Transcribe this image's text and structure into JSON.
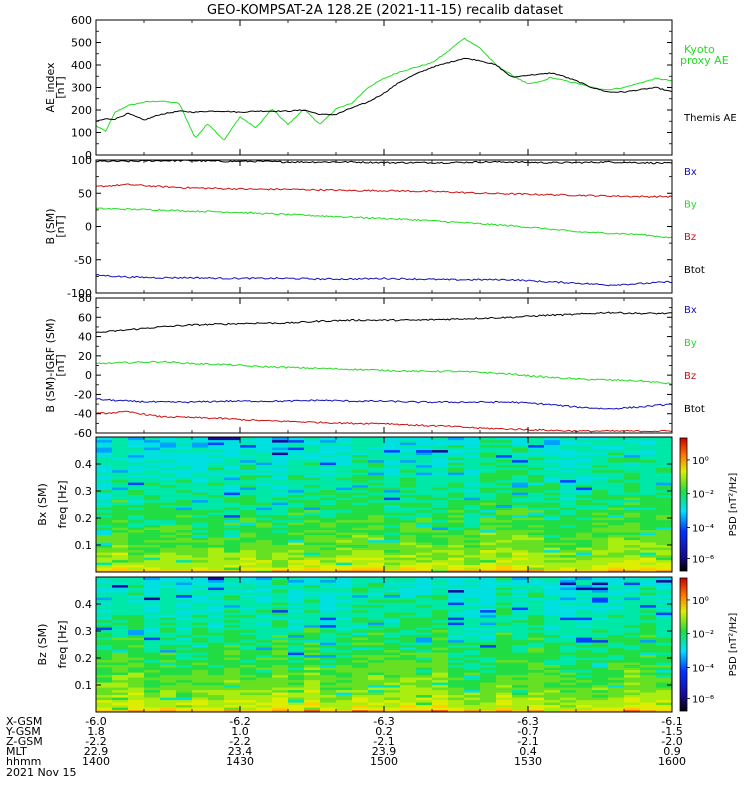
{
  "title": "GEO-KOMPSAT-2A 128.2E (2021-11-15) recalib dataset",
  "colors": {
    "black": "#000000",
    "green": "#22dd22",
    "red": "#cc1111",
    "blue": "#1111bb"
  },
  "chart_data": [
    {
      "type": "line",
      "ylabel": "AE_index [nT]",
      "ylim": [
        0,
        600
      ],
      "yticks": [
        "0",
        "100",
        "200",
        "300",
        "400",
        "500",
        "600"
      ],
      "legend": [
        "Kyoto proxy AE",
        "Themis AE"
      ],
      "x": [
        0,
        3,
        6,
        10,
        15,
        20,
        26,
        31,
        35,
        40,
        45,
        50,
        55,
        60,
        65,
        70,
        75,
        80,
        85,
        90,
        95,
        100,
        105,
        110,
        115,
        120,
        125,
        130,
        135,
        140,
        142,
        145,
        150,
        155,
        160,
        165,
        170,
        175,
        180
      ],
      "series": [
        {
          "name": "Kyoto proxy AE",
          "color": "#22dd22",
          "values": [
            130,
            105,
            190,
            220,
            235,
            240,
            230,
            75,
            140,
            65,
            170,
            120,
            205,
            135,
            205,
            135,
            205,
            230,
            300,
            340,
            370,
            390,
            410,
            460,
            520,
            475,
            400,
            355,
            315,
            330,
            345,
            335,
            320,
            300,
            290,
            300,
            320,
            340,
            330
          ]
        },
        {
          "name": "Themis AE",
          "color": "#000000",
          "values": [
            150,
            160,
            160,
            185,
            155,
            180,
            195,
            190,
            195,
            195,
            190,
            195,
            195,
            195,
            200,
            180,
            180,
            210,
            235,
            275,
            325,
            360,
            390,
            410,
            430,
            420,
            400,
            345,
            355,
            360,
            365,
            355,
            330,
            300,
            280,
            280,
            290,
            300,
            280
          ]
        }
      ]
    },
    {
      "type": "line",
      "ylabel": "B (SM) [nT]",
      "ylim": [
        -100,
        100
      ],
      "yticks": [
        "-100",
        "-50",
        "0",
        "50",
        "100"
      ],
      "legend": [
        "Bx",
        "By",
        "Bz",
        "Btot"
      ],
      "x": [
        0,
        10,
        20,
        30,
        40,
        50,
        60,
        70,
        80,
        90,
        100,
        110,
        120,
        130,
        140,
        150,
        160,
        170,
        180
      ],
      "series": [
        {
          "name": "Btot",
          "color": "#000000",
          "values": [
            98,
            98,
            99,
            99,
            98,
            98,
            97,
            97,
            97,
            96,
            96,
            96,
            97,
            97,
            96,
            96,
            97,
            96,
            95
          ]
        },
        {
          "name": "Bz",
          "color": "#cc1111",
          "values": [
            60,
            63,
            60,
            58,
            57,
            56,
            56,
            55,
            54,
            54,
            53,
            52,
            50,
            49,
            48,
            47,
            46,
            45,
            45
          ]
        },
        {
          "name": "By",
          "color": "#22dd22",
          "values": [
            27,
            26,
            25,
            23,
            22,
            20,
            18,
            16,
            14,
            12,
            10,
            7,
            4,
            1,
            -3,
            -8,
            -10,
            -12,
            -17
          ]
        },
        {
          "name": "Bx",
          "color": "#1111bb",
          "values": [
            -73,
            -76,
            -77,
            -77,
            -78,
            -78,
            -78,
            -79,
            -79,
            -78,
            -79,
            -80,
            -80,
            -80,
            -83,
            -85,
            -88,
            -86,
            -83
          ]
        }
      ]
    },
    {
      "type": "line",
      "ylabel": "B (SM)-IGRF (SM) [nT]",
      "ylim": [
        -60,
        80
      ],
      "yticks": [
        "-60",
        "-40",
        "-20",
        "0",
        "20",
        "40",
        "60",
        "80"
      ],
      "legend": [
        "Bx",
        "By",
        "Bz",
        "Btot"
      ],
      "x": [
        0,
        10,
        20,
        30,
        40,
        50,
        60,
        70,
        80,
        90,
        100,
        110,
        120,
        130,
        140,
        150,
        160,
        170,
        180
      ],
      "series": [
        {
          "name": "Btot",
          "color": "#000000",
          "values": [
            44,
            47,
            50,
            52,
            53,
            54,
            54,
            56,
            57,
            57,
            57,
            58,
            59,
            60,
            62,
            63,
            65,
            64,
            64
          ]
        },
        {
          "name": "By",
          "color": "#22dd22",
          "values": [
            12,
            13,
            14,
            12,
            11,
            9,
            8,
            7,
            6,
            5,
            4,
            4,
            3,
            1,
            -2,
            -4,
            -5,
            -6,
            -9
          ]
        },
        {
          "name": "Bx",
          "color": "#1111bb",
          "values": [
            -25,
            -27,
            -28,
            -28,
            -27,
            -27,
            -27,
            -26,
            -27,
            -27,
            -28,
            -28,
            -28,
            -28,
            -30,
            -33,
            -35,
            -33,
            -30
          ]
        },
        {
          "name": "Bz",
          "color": "#cc1111",
          "values": [
            -40,
            -38,
            -43,
            -44,
            -45,
            -47,
            -48,
            -49,
            -50,
            -50,
            -52,
            -53,
            -55,
            -56,
            -57,
            -58,
            -58,
            -58,
            -58
          ]
        }
      ]
    },
    {
      "type": "heatmap",
      "ylabel": "Bx (SM) freq [Hz]",
      "ylim": [
        0,
        0.5
      ],
      "yticks": [
        "0.1",
        "0.2",
        "0.3",
        "0.4"
      ],
      "colorbar_label": "PSD [nT²/Hz]",
      "colorbar_ticks": [
        "10⁰",
        "10⁻²",
        "10⁻⁴",
        "10⁻⁶"
      ]
    },
    {
      "type": "heatmap",
      "ylabel": "Bz (SM) freq [Hz]",
      "ylim": [
        0,
        0.5
      ],
      "yticks": [
        "0.1",
        "0.2",
        "0.3",
        "0.4"
      ],
      "colorbar_label": "PSD [nT²/Hz]",
      "colorbar_ticks": [
        "10⁰",
        "10⁻²",
        "10⁻⁴",
        "10⁻⁶"
      ]
    }
  ],
  "x_axis": {
    "rows": [
      "X-GSM",
      "Y-GSM",
      "Z-GSM",
      "MLT",
      "hhmm"
    ],
    "date": "2021 Nov 15",
    "columns": [
      [
        "-6.0",
        "1.8",
        "-2.2",
        "22.9",
        "1400"
      ],
      [
        "-6.2",
        "1.0",
        "-2.2",
        "23.4",
        "1430"
      ],
      [
        "-6.3",
        "0.2",
        "-2.1",
        "23.9",
        "1500"
      ],
      [
        "-6.3",
        "-0.7",
        "-2.1",
        "0.4",
        "1530"
      ],
      [
        "-6.1",
        "-1.5",
        "-2.0",
        "0.9",
        "1600"
      ]
    ]
  }
}
